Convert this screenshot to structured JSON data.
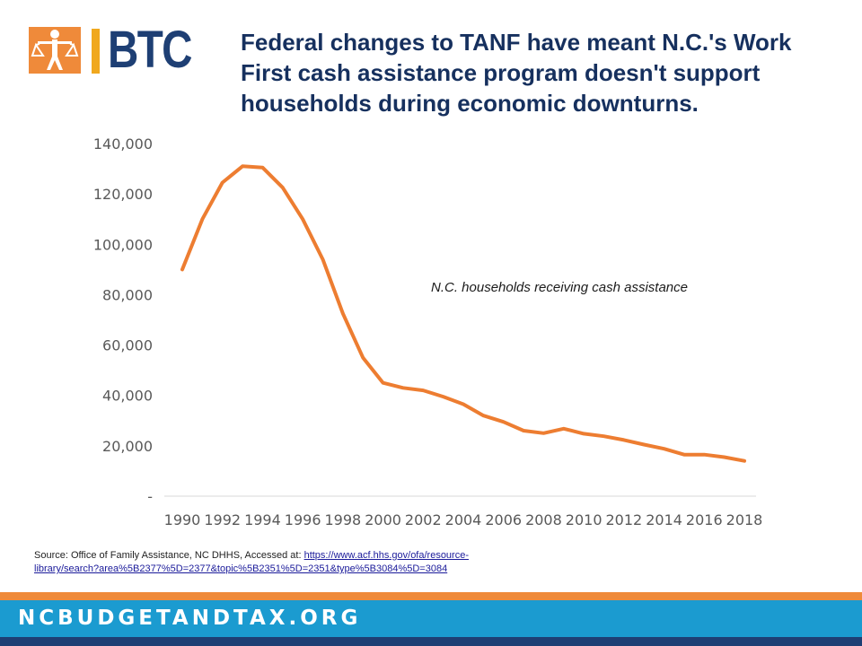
{
  "brand": {
    "logo_text": "BTC",
    "logo_icon": "scales-of-justice-figure-icon",
    "colors": {
      "orange": "#ef8a3a",
      "gold": "#f0a81e",
      "navy": "#1e3f74",
      "footer_blue": "#1b9bd0"
    }
  },
  "title": "Federal changes to TANF have meant N.C.'s Work First cash assistance program doesn't support households during economic downturns.",
  "chart_data": {
    "type": "line",
    "title": "",
    "xlabel": "",
    "ylabel": "",
    "ylim": [
      0,
      140000
    ],
    "yticks": [
      0,
      20000,
      40000,
      60000,
      80000,
      100000,
      120000,
      140000
    ],
    "ytick_labels": [
      "-",
      "20,000",
      "40,000",
      "60,000",
      "80,000",
      "100,000",
      "120,000",
      "140,000"
    ],
    "xtick_labels": [
      "1990",
      "1992",
      "1994",
      "1996",
      "1998",
      "2000",
      "2002",
      "2004",
      "2006",
      "2008",
      "2010",
      "2012",
      "2014",
      "2016",
      "2018"
    ],
    "grid": false,
    "legend": "none",
    "annotation": "N.C. households receiving cash assistance",
    "series": [
      {
        "name": "N.C. households receiving cash assistance",
        "color": "#ed7d31",
        "x": [
          1990,
          1991,
          1992,
          1993,
          1994,
          1995,
          1996,
          1997,
          1998,
          1999,
          2000,
          2001,
          2002,
          2003,
          2004,
          2005,
          2006,
          2007,
          2008,
          2009,
          2010,
          2011,
          2012,
          2013,
          2014,
          2015,
          2016,
          2017,
          2018
        ],
        "y": [
          90000,
          110000,
          124500,
          131000,
          130500,
          122500,
          110000,
          94000,
          72500,
          55000,
          45000,
          43000,
          42000,
          39500,
          36500,
          32000,
          29500,
          26000,
          25000,
          26800,
          24800,
          23800,
          22300,
          20500,
          18800,
          16500,
          16500,
          15500,
          14000
        ]
      }
    ]
  },
  "source": {
    "prefix": "Source: Office of Family Assistance, NC DHHS, Accessed at: ",
    "link_line1": "https://www.acf.hhs.gov/ofa/resource-",
    "link_line2": "library/search?area%5B2377%5D=2377&topic%5B2351%5D=2351&type%5B3084%5D=3084"
  },
  "footer": {
    "text": "NCBUDGETANDTAX.ORG"
  }
}
